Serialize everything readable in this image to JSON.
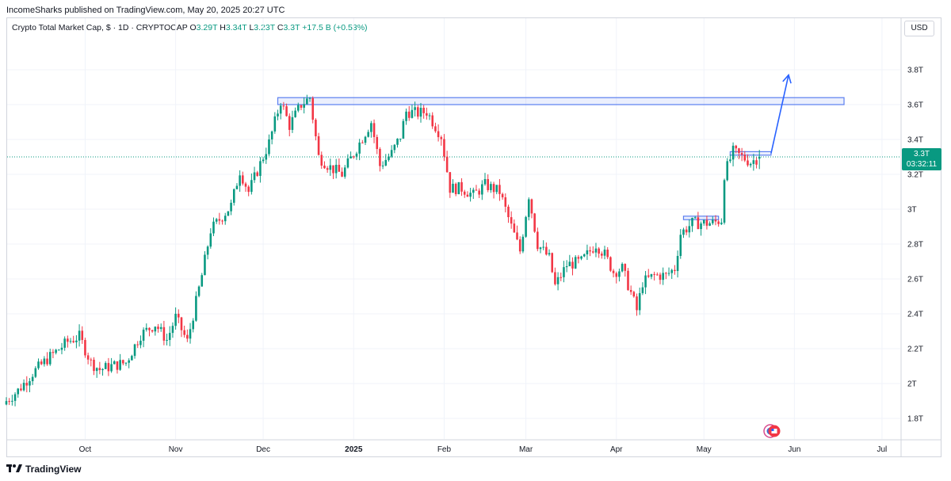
{
  "header": {
    "published": "IncomeSharks published on TradingView.com, May 20, 2025 20:27 UTC"
  },
  "legend": {
    "title": "Crypto Total Market Cap, $ · 1D · CRYPTOCAP",
    "o_key": "O",
    "o_val": "3.29T",
    "h_key": "H",
    "h_val": "3.34T",
    "l_key": "L",
    "l_val": "3.23T",
    "c_key": "C",
    "c_val": "3.3T",
    "change": "+17.5 B (+0.53%)"
  },
  "currency": "USD",
  "price_tag": {
    "price": "3.3T",
    "countdown": "03:32:11"
  },
  "footer": {
    "brand": "TradingView"
  },
  "colors": {
    "up": "#089981",
    "down": "#f23645",
    "zone": "#5b7ff0",
    "arrow": "#2962ff",
    "grid": "#f0f3fa"
  },
  "chart_data": {
    "type": "candlestick",
    "title": "Crypto Total Market Cap, $ · 1D · CRYPTOCAP",
    "y_unit": "T (trillion USD)",
    "ylim": [
      1.7,
      4.0
    ],
    "y_ticks": [
      1.8,
      2.0,
      2.2,
      2.4,
      2.6,
      2.8,
      3.0,
      3.2,
      3.4,
      3.6,
      3.8
    ],
    "y_tick_labels": [
      "1.8T",
      "2T",
      "2.2T",
      "2.4T",
      "2.6T",
      "2.8T",
      "3T",
      "3.2T",
      "3.4T",
      "3.6T",
      "3.8T"
    ],
    "x_start": "2024-09-04",
    "x_end": "2025-07-07",
    "x_ticks": [
      {
        "date": "2024-10-01",
        "label": "Oct"
      },
      {
        "date": "2024-11-01",
        "label": "Nov"
      },
      {
        "date": "2024-12-01",
        "label": "Dec"
      },
      {
        "date": "2025-01-01",
        "label": "2025"
      },
      {
        "date": "2025-02-01",
        "label": "Feb"
      },
      {
        "date": "2025-03-01",
        "label": "Mar"
      },
      {
        "date": "2025-04-01",
        "label": "Apr"
      },
      {
        "date": "2025-05-01",
        "label": "May"
      },
      {
        "date": "2025-06-01",
        "label": "Jun"
      },
      {
        "date": "2025-07-01",
        "label": "Jul"
      }
    ],
    "key_closes": [
      [
        "2024-09-04",
        1.9
      ],
      [
        "2024-09-08",
        1.96
      ],
      [
        "2024-09-13",
        2.06
      ],
      [
        "2024-09-18",
        2.14
      ],
      [
        "2024-09-25",
        2.24
      ],
      [
        "2024-09-29",
        2.27
      ],
      [
        "2024-10-03",
        2.12
      ],
      [
        "2024-10-06",
        2.08
      ],
      [
        "2024-10-10",
        2.1
      ],
      [
        "2024-10-15",
        2.12
      ],
      [
        "2024-10-20",
        2.28
      ],
      [
        "2024-10-25",
        2.34
      ],
      [
        "2024-10-29",
        2.25
      ],
      [
        "2024-11-01",
        2.38
      ],
      [
        "2024-11-05",
        2.24
      ],
      [
        "2024-11-10",
        2.62
      ],
      [
        "2024-11-13",
        2.88
      ],
      [
        "2024-11-20",
        3.02
      ],
      [
        "2024-11-23",
        3.22
      ],
      [
        "2024-11-26",
        3.1
      ],
      [
        "2024-12-03",
        3.38
      ],
      [
        "2024-12-07",
        3.62
      ],
      [
        "2024-12-10",
        3.48
      ],
      [
        "2024-12-14",
        3.6
      ],
      [
        "2024-12-17",
        3.64
      ],
      [
        "2024-12-20",
        3.3
      ],
      [
        "2024-12-24",
        3.24
      ],
      [
        "2024-12-28",
        3.2
      ],
      [
        "2025-01-03",
        3.38
      ],
      [
        "2025-01-07",
        3.5
      ],
      [
        "2025-01-10",
        3.25
      ],
      [
        "2025-01-14",
        3.32
      ],
      [
        "2025-01-17",
        3.42
      ],
      [
        "2025-01-19",
        3.56
      ],
      [
        "2025-01-23",
        3.55
      ],
      [
        "2025-01-26",
        3.56
      ],
      [
        "2025-01-31",
        3.42
      ],
      [
        "2025-02-03",
        3.12
      ],
      [
        "2025-02-07",
        3.12
      ],
      [
        "2025-02-11",
        3.08
      ],
      [
        "2025-02-15",
        3.14
      ],
      [
        "2025-02-20",
        3.1
      ],
      [
        "2025-02-24",
        2.9
      ],
      [
        "2025-02-27",
        2.76
      ],
      [
        "2025-03-02",
        3.08
      ],
      [
        "2025-03-05",
        2.8
      ],
      [
        "2025-03-09",
        2.72
      ],
      [
        "2025-03-11",
        2.56
      ],
      [
        "2025-03-15",
        2.68
      ],
      [
        "2025-03-20",
        2.7
      ],
      [
        "2025-03-25",
        2.8
      ],
      [
        "2025-03-28",
        2.74
      ],
      [
        "2025-03-31",
        2.64
      ],
      [
        "2025-04-03",
        2.66
      ],
      [
        "2025-04-06",
        2.52
      ],
      [
        "2025-04-08",
        2.42
      ],
      [
        "2025-04-10",
        2.58
      ],
      [
        "2025-04-14",
        2.62
      ],
      [
        "2025-04-18",
        2.62
      ],
      [
        "2025-04-21",
        2.66
      ],
      [
        "2025-04-23",
        2.86
      ],
      [
        "2025-04-27",
        2.92
      ],
      [
        "2025-04-30",
        2.92
      ],
      [
        "2025-05-04",
        2.92
      ],
      [
        "2025-05-07",
        2.94
      ],
      [
        "2025-05-08",
        3.2
      ],
      [
        "2025-05-11",
        3.33
      ],
      [
        "2025-05-14",
        3.3
      ],
      [
        "2025-05-17",
        3.27
      ],
      [
        "2025-05-20",
        3.3
      ]
    ],
    "resistance_zone": {
      "from": "2024-12-06",
      "to": "2025-06-18",
      "low": 3.6,
      "high": 3.64
    },
    "annotations": [
      {
        "type": "box",
        "from": "2025-04-24",
        "to": "2025-05-06",
        "low": 2.94,
        "high": 2.96
      },
      {
        "type": "box",
        "from": "2025-05-10",
        "to": "2025-05-24",
        "low": 3.31,
        "high": 3.33
      },
      {
        "type": "arrow",
        "from_date": "2025-05-24",
        "from_value": 3.32,
        "to_date": "2025-05-30",
        "to_value": 3.77
      }
    ],
    "current_price_line": 3.3
  }
}
